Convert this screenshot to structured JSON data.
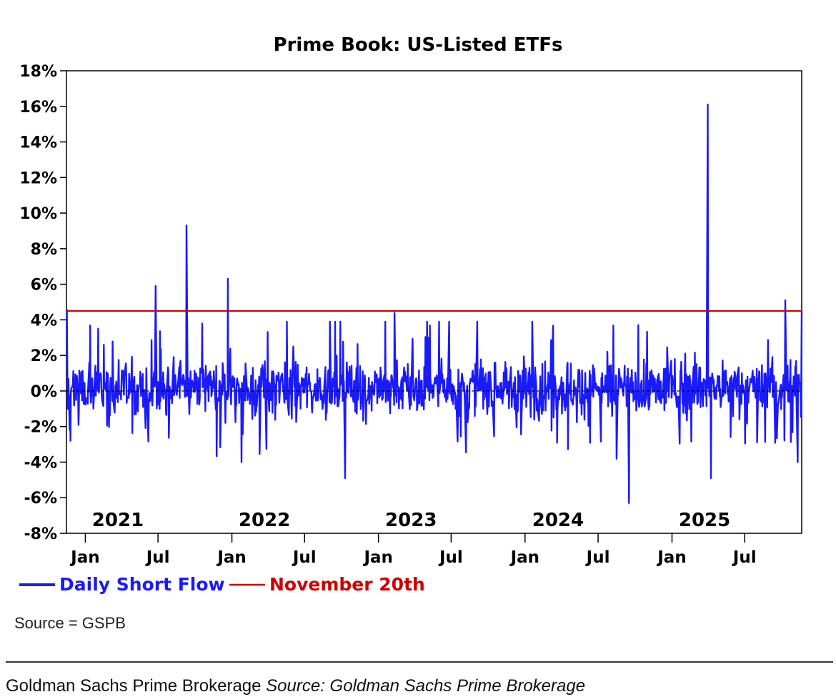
{
  "chart_data": {
    "type": "line",
    "title": "Prime Book: US-Listed ETFs",
    "xlabel": "",
    "ylabel": "",
    "ylim": [
      -8,
      18
    ],
    "y_ticks": [
      "18%",
      "16%",
      "14%",
      "12%",
      "10%",
      "8%",
      "6%",
      "4%",
      "2%",
      "0%",
      "-2%",
      "-4%",
      "-6%",
      "-8%"
    ],
    "y_tick_values": [
      18,
      16,
      14,
      12,
      10,
      8,
      6,
      4,
      2,
      0,
      -2,
      -4,
      -6,
      -8
    ],
    "x_range": [
      "2020-11-15",
      "2025-11-20"
    ],
    "x_ticks": [
      "Jan",
      "Jul",
      "Jan",
      "Jul",
      "Jan",
      "Jul",
      "Jan",
      "Jul",
      "Jan",
      "Jul"
    ],
    "x_tick_dates": [
      "2021-01-01",
      "2021-07-01",
      "2022-01-01",
      "2022-07-01",
      "2023-01-01",
      "2023-07-01",
      "2024-01-01",
      "2024-07-01",
      "2025-01-01",
      "2025-07-01"
    ],
    "year_labels": [
      "2021",
      "2022",
      "2023",
      "2024",
      "2025"
    ],
    "zero_line": "dashed",
    "series": [
      {
        "name": "Daily Short Flow",
        "color": "#1a1aff",
        "approx_daily_values": true,
        "notable_points": [
          {
            "date": "2020-11-16",
            "value": 4.6
          },
          {
            "date": "2020-11-25",
            "value": -2.8
          },
          {
            "date": "2021-06-25",
            "value": 5.9
          },
          {
            "date": "2021-09-10",
            "value": 9.3
          },
          {
            "date": "2021-12-22",
            "value": 6.3
          },
          {
            "date": "2022-01-25",
            "value": -4.0
          },
          {
            "date": "2022-10-10",
            "value": -4.9
          },
          {
            "date": "2023-02-10",
            "value": 4.4
          },
          {
            "date": "2023-06-25",
            "value": 3.9
          },
          {
            "date": "2024-09-15",
            "value": -6.3
          },
          {
            "date": "2025-03-30",
            "value": 16.1
          },
          {
            "date": "2025-04-08",
            "value": -4.9
          },
          {
            "date": "2025-10-10",
            "value": 5.1
          },
          {
            "date": "2025-11-10",
            "value": -4.0
          },
          {
            "date": "2025-11-20",
            "value": 4.5
          }
        ]
      },
      {
        "name": "November 20th",
        "color": "#cc0000",
        "value": 4.5,
        "style": "horizontal reference line"
      }
    ],
    "legend": [
      "Daily Short Flow",
      "November 20th"
    ],
    "legend_position": "bottom-left",
    "source_note": "Source = GSPB"
  },
  "caption": {
    "prefix": "Goldman Sachs Prime Brokerage",
    "source": "Source: Goldman Sachs Prime Brokerage"
  }
}
